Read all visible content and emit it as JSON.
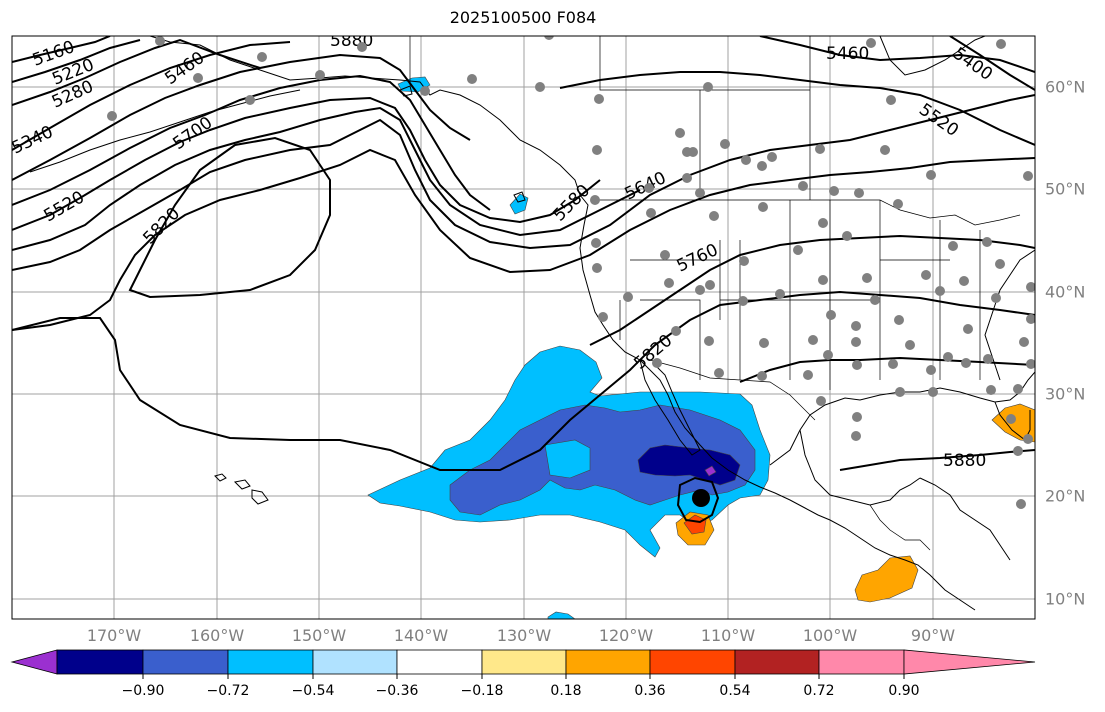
{
  "title": "2025100500 F084",
  "lon_labels": [
    "170°W",
    "160°W",
    "150°W",
    "140°W",
    "130°W",
    "120°W",
    "110°W",
    "100°W",
    "90°W"
  ],
  "lat_labels": [
    "60°N",
    "50°N",
    "40°N",
    "30°N",
    "20°N",
    "10°N"
  ],
  "contour_labels": [
    "5160",
    "5220",
    "5280",
    "5340",
    "5400",
    "5460",
    "5520",
    "5580",
    "5640",
    "5700",
    "5760",
    "5820",
    "5880"
  ],
  "colorbar": {
    "tick_labels": [
      "−0.90",
      "−0.72",
      "−0.54",
      "−0.36",
      "−0.18",
      "0.18",
      "0.36",
      "0.54",
      "0.72",
      "0.90"
    ],
    "colors": [
      "#9b30d0",
      "#00008b",
      "#3a5fcd",
      "#00bfff",
      "#b0e2ff",
      "#ffffff",
      "#ffe88a",
      "#ffa500",
      "#ff4500",
      "#b22222",
      "#ff88aa"
    ]
  },
  "palette": {
    "land_line": "#000000",
    "contour": "#000000",
    "grid": "#a0a0a0",
    "station": "#808080"
  }
}
